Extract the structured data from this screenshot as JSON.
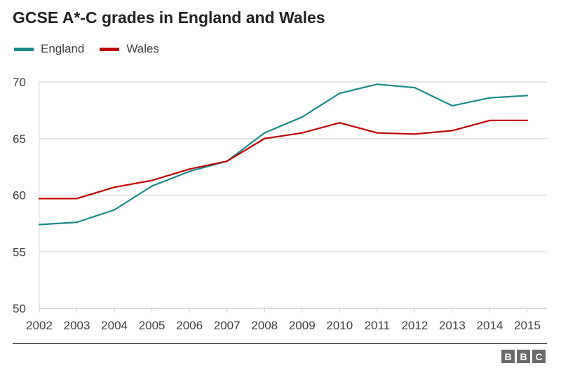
{
  "chart_data": {
    "type": "line",
    "title": "GCSE A*-C grades in England and Wales",
    "xlabel": "",
    "ylabel": "",
    "x": [
      "2002",
      "2003",
      "2004",
      "2005",
      "2006",
      "2007",
      "2008",
      "2009",
      "2010",
      "2011",
      "2012",
      "2013",
      "2014",
      "2015"
    ],
    "ylim": [
      50,
      70
    ],
    "yticks": [
      50,
      55,
      60,
      65,
      70
    ],
    "grid": true,
    "legend_position": "top-left",
    "series": [
      {
        "name": "England",
        "color": "#1b8a8a",
        "values": [
          57.4,
          57.6,
          58.7,
          60.8,
          62.1,
          63.0,
          65.5,
          66.9,
          69.0,
          69.8,
          69.5,
          67.9,
          68.6,
          68.8
        ]
      },
      {
        "name": "Wales",
        "color": "#c00000",
        "values": [
          59.7,
          59.7,
          60.7,
          61.3,
          62.3,
          63.0,
          65.0,
          65.5,
          66.4,
          65.5,
          65.4,
          65.7,
          66.6,
          66.6
        ]
      }
    ]
  },
  "branding": {
    "logo": [
      "B",
      "B",
      "C"
    ]
  }
}
